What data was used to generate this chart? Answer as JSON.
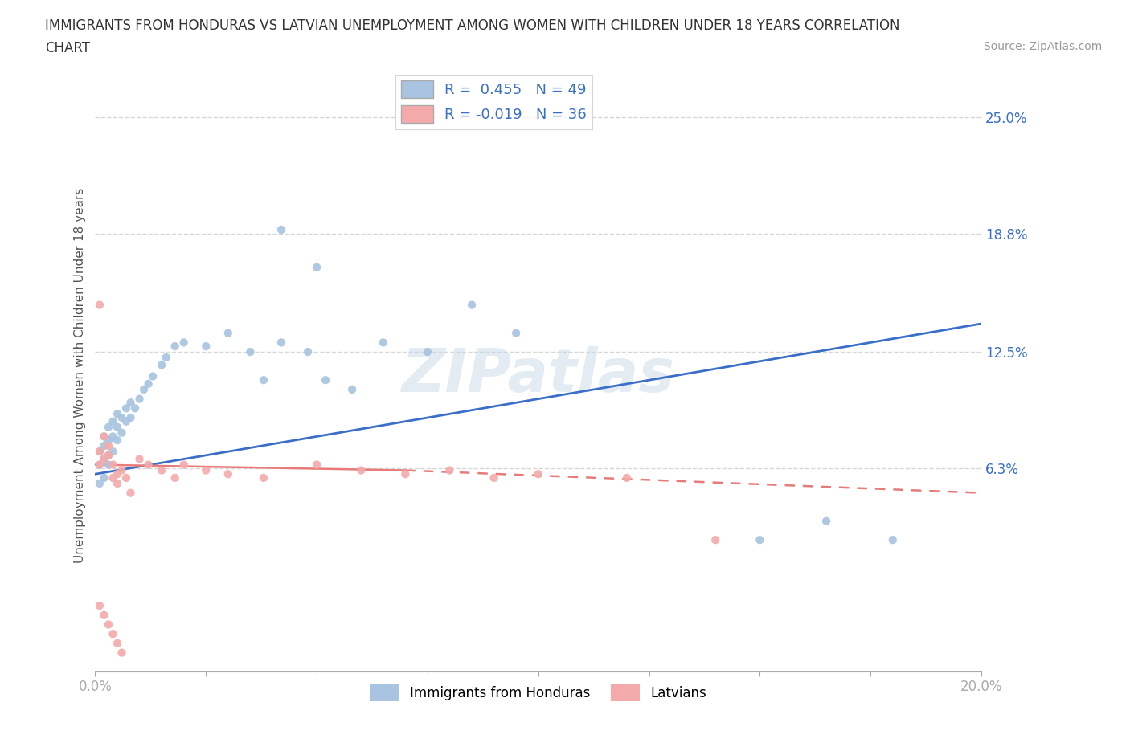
{
  "title_line1": "IMMIGRANTS FROM HONDURAS VS LATVIAN UNEMPLOYMENT AMONG WOMEN WITH CHILDREN UNDER 18 YEARS CORRELATION",
  "title_line2": "CHART",
  "source": "Source: ZipAtlas.com",
  "ylabel": "Unemployment Among Women with Children Under 18 years",
  "xlim": [
    0.0,
    0.2
  ],
  "ylim": [
    -0.045,
    0.27
  ],
  "yticks": [
    0.063,
    0.125,
    0.188,
    0.25
  ],
  "ytick_labels": [
    "6.3%",
    "12.5%",
    "18.8%",
    "25.0%"
  ],
  "xticks": [
    0.0,
    0.025,
    0.05,
    0.075,
    0.1,
    0.125,
    0.15,
    0.175,
    0.2
  ],
  "xtick_labels": [
    "0.0%",
    "",
    "",
    "",
    "",
    "",
    "",
    "",
    "20.0%"
  ],
  "blue_R": 0.455,
  "blue_N": 49,
  "pink_R": -0.019,
  "pink_N": 36,
  "blue_color": "#A8C4E0",
  "pink_color": "#F4AAAA",
  "blue_line_color": "#3A6EC8",
  "pink_line_color": "#E87A7A",
  "watermark": "ZIPatlas",
  "legend_label_blue": "Immigrants from Honduras",
  "legend_label_pink": "Latvians",
  "blue_line_x0": 0.0,
  "blue_line_y0": 0.06,
  "blue_line_x1": 0.2,
  "blue_line_y1": 0.14,
  "pink_line_solid_x0": 0.0,
  "pink_line_solid_y0": 0.065,
  "pink_line_solid_x1": 0.07,
  "pink_line_solid_y1": 0.062,
  "pink_line_dash_x0": 0.07,
  "pink_line_dash_y0": 0.062,
  "pink_line_dash_x1": 0.2,
  "pink_line_dash_y1": 0.05,
  "blue_scatter_x": [
    0.001,
    0.001,
    0.001,
    0.002,
    0.002,
    0.002,
    0.002,
    0.003,
    0.003,
    0.003,
    0.003,
    0.004,
    0.004,
    0.004,
    0.005,
    0.005,
    0.005,
    0.006,
    0.006,
    0.007,
    0.007,
    0.008,
    0.008,
    0.009,
    0.01,
    0.011,
    0.012,
    0.013,
    0.015,
    0.016,
    0.018,
    0.02,
    0.025,
    0.03,
    0.035,
    0.038,
    0.042,
    0.048,
    0.052,
    0.058,
    0.065,
    0.075,
    0.085,
    0.095,
    0.042,
    0.05,
    0.15,
    0.165,
    0.18
  ],
  "blue_scatter_y": [
    0.055,
    0.065,
    0.072,
    0.058,
    0.068,
    0.075,
    0.08,
    0.065,
    0.07,
    0.078,
    0.085,
    0.072,
    0.08,
    0.088,
    0.078,
    0.085,
    0.092,
    0.082,
    0.09,
    0.088,
    0.095,
    0.09,
    0.098,
    0.095,
    0.1,
    0.105,
    0.108,
    0.112,
    0.118,
    0.122,
    0.128,
    0.13,
    0.128,
    0.135,
    0.125,
    0.11,
    0.13,
    0.125,
    0.11,
    0.105,
    0.13,
    0.125,
    0.15,
    0.135,
    0.19,
    0.17,
    0.025,
    0.035,
    0.025
  ],
  "pink_scatter_x": [
    0.001,
    0.001,
    0.001,
    0.002,
    0.002,
    0.003,
    0.003,
    0.004,
    0.004,
    0.005,
    0.005,
    0.006,
    0.007,
    0.008,
    0.01,
    0.012,
    0.015,
    0.018,
    0.02,
    0.025,
    0.03,
    0.038,
    0.05,
    0.06,
    0.07,
    0.08,
    0.09,
    0.1,
    0.12,
    0.14,
    0.001,
    0.002,
    0.003,
    0.004,
    0.005,
    0.006
  ],
  "pink_scatter_y": [
    0.065,
    0.072,
    0.15,
    0.068,
    0.08,
    0.07,
    0.075,
    0.065,
    0.058,
    0.06,
    0.055,
    0.062,
    0.058,
    0.05,
    0.068,
    0.065,
    0.062,
    0.058,
    0.065,
    0.062,
    0.06,
    0.058,
    0.065,
    0.062,
    0.06,
    0.062,
    0.058,
    0.06,
    0.058,
    0.025,
    -0.01,
    -0.015,
    -0.02,
    -0.025,
    -0.03,
    -0.035
  ],
  "grid_color": "#CCCCCC",
  "background_color": "#FFFFFF",
  "tick_label_color": "#3A6EC8"
}
